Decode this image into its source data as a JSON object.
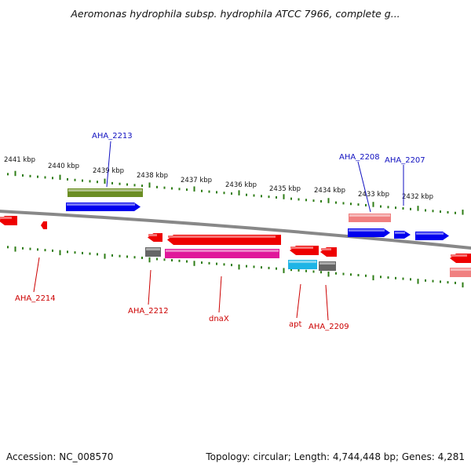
{
  "title": "Aeromonas hydrophila subsp. hydrophila ATCC 7966, complete g...",
  "footer": {
    "accession": "Accession: NC_008570",
    "summary": "Topology: circular; Length: 4,744,448 bp; Genes: 4,281"
  },
  "colors": {
    "backbone": "#888888",
    "tick": "#2e7d16",
    "label_plus": "#1010c0",
    "label_minus": "#cc0000"
  },
  "scale_labels": [
    {
      "kbp": 2441,
      "text": "2441 kbp"
    },
    {
      "kbp": 2440,
      "text": "2440 kbp"
    },
    {
      "kbp": 2439,
      "text": "2439 kbp"
    },
    {
      "kbp": 2438,
      "text": "2438 kbp"
    },
    {
      "kbp": 2437,
      "text": "2437 kbp"
    },
    {
      "kbp": 2436,
      "text": "2436 kbp"
    },
    {
      "kbp": 2435,
      "text": "2435 kbp"
    },
    {
      "kbp": 2434,
      "text": "2434 kbp"
    },
    {
      "kbp": 2433,
      "text": "2433 kbp"
    },
    {
      "kbp": 2432,
      "text": "2432 kbp"
    }
  ],
  "features": [
    {
      "strand": "+",
      "kind": "bar",
      "color": "#6b8e23",
      "label": "AHA_2213"
    },
    {
      "strand": "+",
      "kind": "arrow",
      "color": "#0000ee",
      "label": ""
    },
    {
      "strand": "+",
      "kind": "bar",
      "color": "#f08080",
      "label": "AHA_2208"
    },
    {
      "strand": "+",
      "kind": "arrow",
      "color": "#0000ee",
      "label": ""
    },
    {
      "strand": "+",
      "kind": "arrow",
      "color": "#0000ee",
      "label": "AHA_2207"
    },
    {
      "strand": "+",
      "kind": "arrow",
      "color": "#0000ee",
      "label": ""
    },
    {
      "strand": "-",
      "kind": "arrow",
      "color": "#ee0000",
      "label": ""
    },
    {
      "strand": "-",
      "kind": "arrow",
      "color": "#ee0000",
      "label": "AHA_2214"
    },
    {
      "strand": "-",
      "kind": "arrow",
      "color": "#ee0000",
      "label": ""
    },
    {
      "strand": "-",
      "kind": "bar",
      "color": "#666666",
      "label": "AHA_2212"
    },
    {
      "strand": "-",
      "kind": "arrow",
      "color": "#ee0000",
      "label": ""
    },
    {
      "strand": "-",
      "kind": "bar",
      "color": "#e0189a",
      "label": "dnaX"
    },
    {
      "strand": "-",
      "kind": "arrow",
      "color": "#ee0000",
      "label": ""
    },
    {
      "strand": "-",
      "kind": "bar",
      "color": "#1eb4e6",
      "label": "apt"
    },
    {
      "strand": "-",
      "kind": "arrow",
      "color": "#ee0000",
      "label": ""
    },
    {
      "strand": "-",
      "kind": "bar",
      "color": "#666666",
      "label": "AHA_2209"
    },
    {
      "strand": "-",
      "kind": "arrow",
      "color": "#ee0000",
      "label": ""
    },
    {
      "strand": "-",
      "kind": "bar",
      "color": "#f08080",
      "label": ""
    }
  ]
}
